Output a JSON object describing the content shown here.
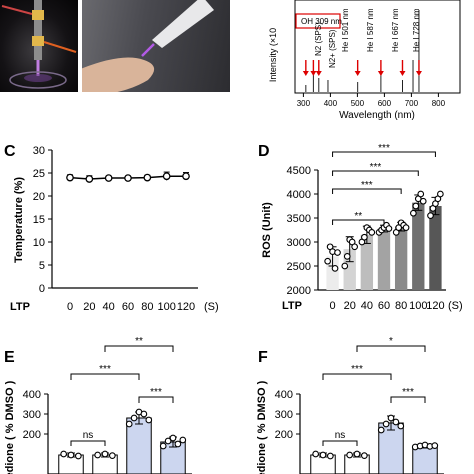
{
  "photos": {
    "left": "plasma-jet-photo",
    "right": "plasma-finger-photo"
  },
  "panel_b": {
    "ylabel_fragment": "Intensity (×10",
    "xlabel": "Wavelength (nm)",
    "xticks": [
      "300",
      "400",
      "500",
      "600",
      "700",
      "800"
    ],
    "annotations": [
      "OH 309 nm",
      "N2 (SPS)",
      "N2+ (SPS)",
      "He I 501 nm",
      "He I 587 nm",
      "He I 667 nm",
      "He I 728 nm"
    ]
  },
  "chart_data": [
    {
      "panel": "C",
      "type": "line",
      "title": "",
      "xlabel": "LTP",
      "x_unit": "(S)",
      "ylabel": "Temperature (%)",
      "categories": [
        "0",
        "20",
        "40",
        "60",
        "80",
        "100",
        "120"
      ],
      "values": [
        24.0,
        23.7,
        23.9,
        23.9,
        24.0,
        24.3,
        24.3
      ],
      "errors": [
        0.6,
        0.7,
        0.4,
        0.4,
        0.5,
        0.9,
        0.8
      ],
      "ylim": [
        0,
        30
      ],
      "yticks": [
        "0",
        "5",
        "10",
        "15",
        "20",
        "25",
        "30"
      ],
      "grid": false
    },
    {
      "panel": "D",
      "type": "bar",
      "title": "",
      "xlabel": "LTP",
      "x_unit": "(S)",
      "ylabel": "ROS (Unit)",
      "categories": [
        "0",
        "20",
        "40",
        "60",
        "80",
        "100",
        "120"
      ],
      "values": [
        2700,
        2850,
        3150,
        3280,
        3320,
        3820,
        3750
      ],
      "errors": [
        200,
        260,
        180,
        70,
        90,
        160,
        180
      ],
      "points": [
        [
          2600,
          2900,
          2800,
          2450,
          2780
        ],
        [
          2500,
          2700,
          3050,
          3000,
          2900
        ],
        [
          3000,
          3100,
          3300,
          3250,
          3200
        ],
        [
          3200,
          3250,
          3300,
          3350,
          3280
        ],
        [
          3200,
          3300,
          3400,
          3350,
          3300
        ],
        [
          3600,
          3750,
          3900,
          4000,
          3850
        ],
        [
          3550,
          3700,
          3800,
          3900,
          4000
        ]
      ],
      "ylim": [
        2000,
        4500
      ],
      "yticks": [
        "2000",
        "2500",
        "3000",
        "3500",
        "4000",
        "4500"
      ],
      "significance": [
        "**",
        "***",
        "***",
        "***"
      ],
      "bar_colors": [
        "#ececec",
        "#d4d4d4",
        "#bdbdbd",
        "#a3a3a3",
        "#8a8a8a",
        "#707070",
        "#575757"
      ],
      "grid": false
    },
    {
      "panel": "E",
      "type": "bar",
      "title": "",
      "ylabel_fragment": "enedione ( % DMSO )",
      "ylim": [
        0,
        400
      ],
      "yticks": [
        "200",
        "300",
        "400"
      ],
      "values": [
        95,
        95,
        280,
        160
      ],
      "errors": [
        10,
        10,
        30,
        25
      ],
      "points": [
        [
          100,
          95,
          90
        ],
        [
          95,
          100,
          92
        ],
        [
          250,
          280,
          310,
          300,
          270
        ],
        [
          140,
          165,
          180,
          150,
          170
        ]
      ],
      "bar_colors": [
        "#ffffff",
        "#ffffff",
        "#ccd6ef",
        "#ccd6ef"
      ],
      "significance": [
        "ns",
        "***",
        "***",
        "**"
      ],
      "grid": false
    },
    {
      "panel": "F",
      "type": "bar",
      "title": "",
      "ylabel_fragment": "enedione ( % DMSO )",
      "ylim": [
        0,
        400
      ],
      "yticks": [
        "200",
        "300",
        "400"
      ],
      "values": [
        95,
        95,
        255,
        140
      ],
      "errors": [
        10,
        10,
        35,
        10
      ],
      "points": [
        [
          100,
          95,
          90
        ],
        [
          95,
          100,
          92
        ],
        [
          220,
          250,
          280,
          260,
          240
        ],
        [
          135,
          140,
          145,
          138,
          142
        ]
      ],
      "bar_colors": [
        "#ffffff",
        "#ffffff",
        "#ccd6ef",
        "#ccd6ef"
      ],
      "significance": [
        "ns",
        "***",
        "***",
        "*"
      ],
      "grid": false
    }
  ],
  "panel_letters": [
    "C",
    "D",
    "E",
    "F"
  ]
}
